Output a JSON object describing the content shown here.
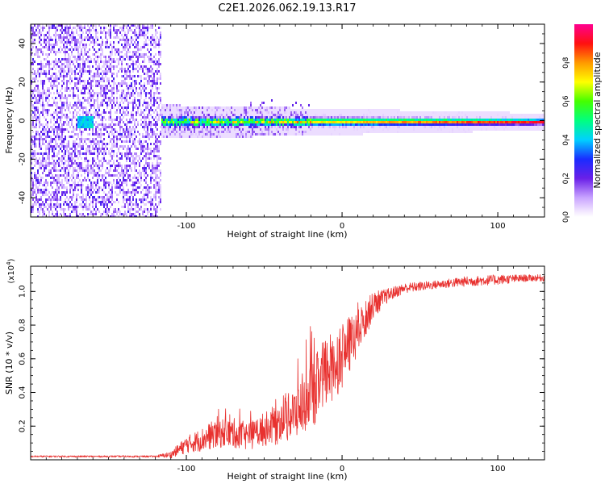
{
  "title": "C2E1.2026.062.19.13.R17",
  "colors": {
    "trace": "#e8312f",
    "axis": "#000000",
    "background": "#ffffff"
  },
  "colorbar": {
    "label": "Normalized spectral amplitude",
    "ticks": [
      "0.0",
      "0.2",
      "0.4",
      "0.6",
      "0.8"
    ],
    "tick_values": [
      0.0,
      0.2,
      0.4,
      0.6,
      0.8
    ],
    "range": [
      0,
      1
    ]
  },
  "chart_data": [
    {
      "type": "heatmap",
      "name": "spectrogram",
      "xlabel": "Height of straight line (km)",
      "ylabel": "Frequency (Hz)",
      "xlim": [
        -200,
        130
      ],
      "ylim": [
        -50,
        50
      ],
      "x_ticks": [
        "-100",
        "0",
        "100"
      ],
      "x_tick_values": [
        -100,
        0,
        100
      ],
      "y_ticks": [
        "-40",
        "-20",
        "0",
        "20",
        "40"
      ],
      "y_tick_values": [
        -40,
        -20,
        0,
        20,
        40
      ],
      "features": [
        {
          "kind": "noise",
          "x_range": [
            -200,
            -117
          ],
          "f_range": [
            -50,
            50
          ],
          "level": 0.15
        },
        {
          "kind": "carrier",
          "x_range": [
            -117,
            130
          ],
          "f_center": 0,
          "halfwidth_hz": [
            4,
            2
          ],
          "peak_level": 0.9
        }
      ]
    },
    {
      "type": "line",
      "name": "snr",
      "xlabel": "Height of straight line (km)",
      "ylabel": "SNR (10 * v/v)",
      "scale_label": "(x10",
      "scale_exp": "4",
      "scale_close": ")",
      "xlim": [
        -200,
        130
      ],
      "ylim": [
        0,
        1.15
      ],
      "x_ticks": [
        "-100",
        "0",
        "100"
      ],
      "x_tick_values": [
        -100,
        0,
        100
      ],
      "y_ticks": [
        "0.2",
        "0.4",
        "0.6",
        "0.8",
        "1.0"
      ],
      "y_tick_values": [
        0.2,
        0.4,
        0.6,
        0.8,
        1.0
      ],
      "series": [
        {
          "name": "SNR",
          "x": [
            -200,
            -170,
            -150,
            -120,
            -110,
            -100,
            -90,
            -80,
            -70,
            -60,
            -50,
            -40,
            -30,
            -20,
            -10,
            0,
            10,
            20,
            30,
            40,
            60,
            80,
            100,
            120,
            130
          ],
          "mean": [
            0.02,
            0.02,
            0.02,
            0.02,
            0.03,
            0.09,
            0.12,
            0.16,
            0.16,
            0.14,
            0.18,
            0.22,
            0.28,
            0.38,
            0.52,
            0.62,
            0.75,
            0.92,
            0.98,
            1.02,
            1.04,
            1.06,
            1.07,
            1.08,
            1.08
          ],
          "spread": [
            0.005,
            0.005,
            0.005,
            0.005,
            0.02,
            0.05,
            0.07,
            0.09,
            0.09,
            0.08,
            0.1,
            0.13,
            0.15,
            0.2,
            0.22,
            0.2,
            0.14,
            0.08,
            0.04,
            0.03,
            0.025,
            0.03,
            0.03,
            0.02,
            0.02
          ]
        }
      ]
    }
  ]
}
